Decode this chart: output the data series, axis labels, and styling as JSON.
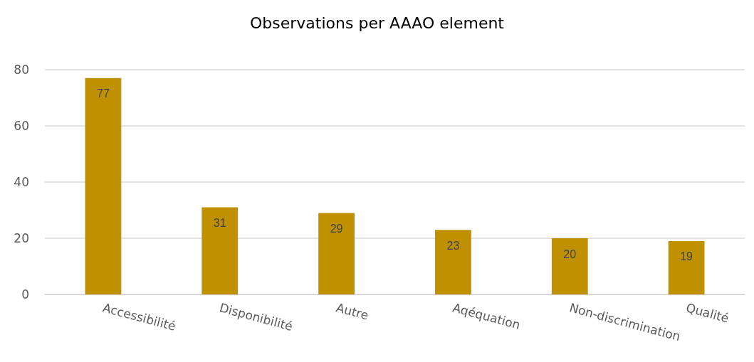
{
  "chart_data": {
    "type": "bar",
    "title": "Observations per AAAO element",
    "categories": [
      "Accessibilité",
      "Disponibilité",
      "Autre",
      "Aqéquation",
      "Non-discrimination",
      "Qualité"
    ],
    "values": [
      77,
      31,
      29,
      23,
      20,
      19
    ],
    "color": "#bf9000",
    "ylim": [
      0,
      80
    ],
    "yticks": [
      0,
      20,
      40,
      60,
      80
    ],
    "grid": "y",
    "data_labels": true
  }
}
